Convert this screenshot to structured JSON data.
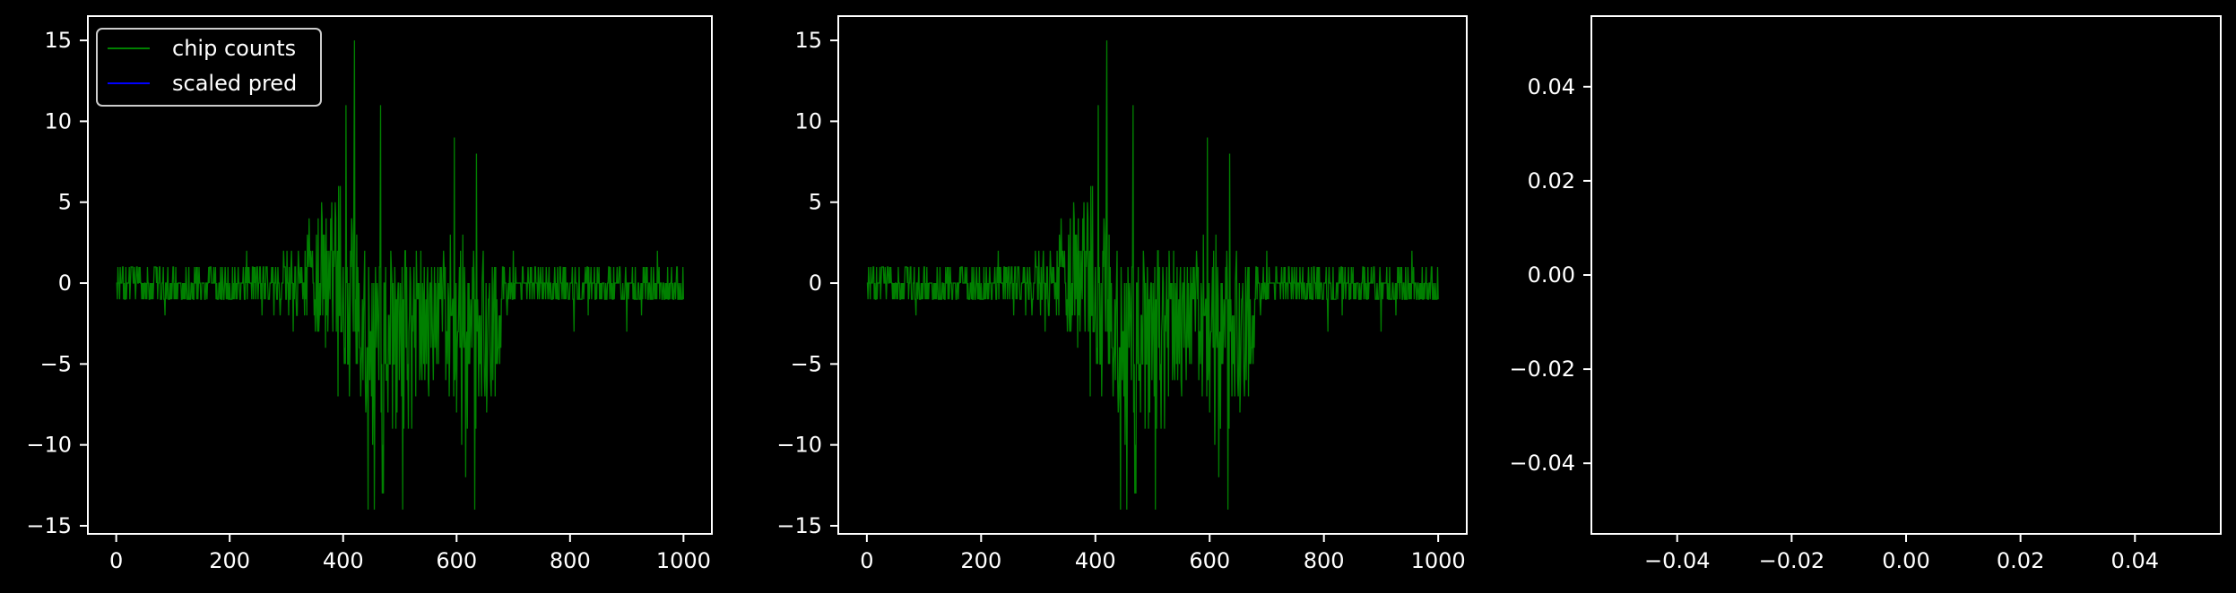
{
  "theme": {
    "background": "#000000",
    "axes_color": "#ffffff",
    "text_color": "#ffffff"
  },
  "chart_data": [
    {
      "type": "line",
      "title": "",
      "xlabel": "",
      "ylabel": "",
      "xlim": [
        -50,
        1050
      ],
      "ylim": [
        -15.5,
        16.5
      ],
      "xticks": [
        0,
        200,
        400,
        600,
        800,
        1000
      ],
      "xtick_labels": [
        "0",
        "200",
        "400",
        "600",
        "800",
        "1000"
      ],
      "yticks": [
        -15,
        -10,
        -5,
        0,
        5,
        10,
        15
      ],
      "ytick_labels": [
        "−15",
        "−10",
        "−5",
        "0",
        "5",
        "10",
        "15"
      ],
      "grid": false,
      "legend": {
        "placement": "upper-left",
        "entries": [
          "chip counts",
          "scaled pred"
        ]
      },
      "series": [
        {
          "name": "chip counts",
          "color": "#008000",
          "note_spikes": [
            [
              420,
              15
            ],
            [
              444,
              -14
            ],
            [
              505,
              -14
            ],
            [
              632,
              -14
            ],
            [
              466,
              11
            ],
            [
              405,
              11
            ],
            [
              596,
              9
            ],
            [
              635,
              8
            ]
          ]
        },
        {
          "name": "scaled pred",
          "color": "#0000ff",
          "values": []
        }
      ]
    },
    {
      "type": "line",
      "title": "",
      "xlabel": "",
      "ylabel": "",
      "xlim": [
        -50,
        1050
      ],
      "ylim": [
        -15.5,
        16.5
      ],
      "xticks": [
        0,
        200,
        400,
        600,
        800,
        1000
      ],
      "xtick_labels": [
        "0",
        "200",
        "400",
        "600",
        "800",
        "1000"
      ],
      "yticks": [
        -15,
        -10,
        -5,
        0,
        5,
        10,
        15
      ],
      "ytick_labels": [
        "−15",
        "−10",
        "−5",
        "0",
        "5",
        "10",
        "15"
      ],
      "grid": false,
      "series": [
        {
          "name": "",
          "color": "#008000"
        }
      ]
    },
    {
      "type": "line",
      "title": "",
      "xlabel": "",
      "ylabel": "",
      "xlim": [
        -0.055,
        0.055
      ],
      "ylim": [
        -0.055,
        0.055
      ],
      "xticks": [
        -0.04,
        -0.02,
        0.0,
        0.02,
        0.04
      ],
      "xtick_labels": [
        "−0.04",
        "−0.02",
        "0.00",
        "0.02",
        "0.04"
      ],
      "yticks": [
        -0.04,
        -0.02,
        0.0,
        0.02,
        0.04
      ],
      "ytick_labels": [
        "−0.04",
        "−0.02",
        "0.00",
        "0.02",
        "0.04"
      ],
      "grid": false,
      "series": []
    }
  ]
}
